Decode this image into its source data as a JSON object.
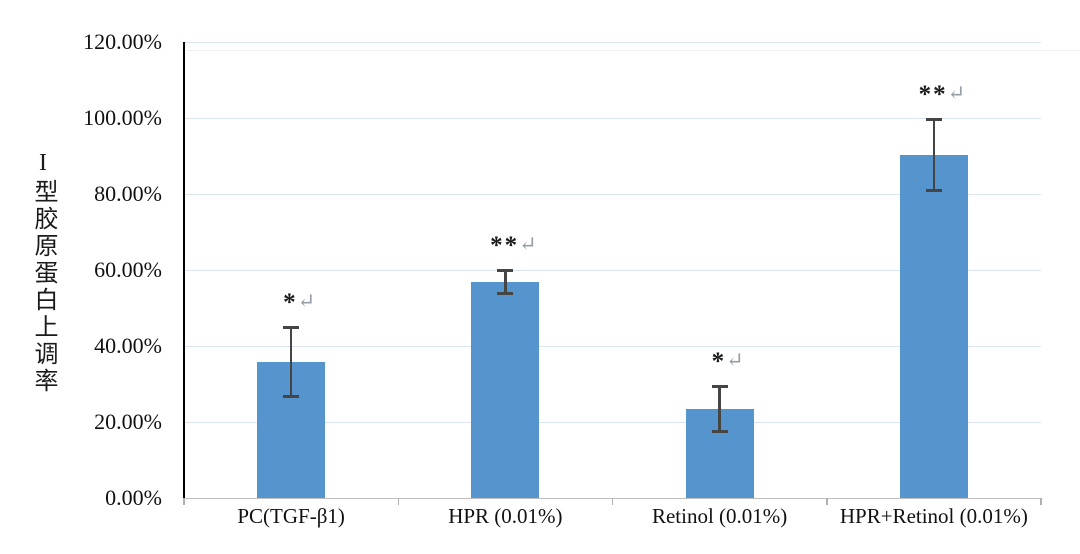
{
  "chart_data": {
    "type": "bar",
    "title": "",
    "ylabel": "I型胶原蛋白上调率",
    "xlabel": "",
    "categories": [
      "PC(TGF-β1)",
      "HPR (0.01%)",
      "Retinol (0.01%)",
      "HPR+Retinol (0.01%)"
    ],
    "values": [
      35.7,
      56.8,
      23.4,
      90.3
    ],
    "errors": [
      9.2,
      3.2,
      6.1,
      9.4
    ],
    "significance": [
      "*",
      "**",
      "*",
      "**"
    ],
    "return_mark": "↵",
    "ytick_values": [
      0,
      20,
      40,
      60,
      80,
      100,
      120
    ],
    "ytick_labels": [
      "0.00%",
      "20.00%",
      "40.00%",
      "60.00%",
      "80.00%",
      "100.00%",
      "120.00%"
    ],
    "ylim": [
      0,
      120
    ],
    "grid": true,
    "legend": null,
    "colors": {
      "bar": "#5694CE",
      "gridline": "#dbe5f1",
      "y_axis": "#000000",
      "x_axis": "#bfbfbf",
      "error_bar": "#454545",
      "significance_star": "#1a1a1a",
      "return_mark_color": "#979ea8",
      "tick_text": "#111111"
    }
  }
}
